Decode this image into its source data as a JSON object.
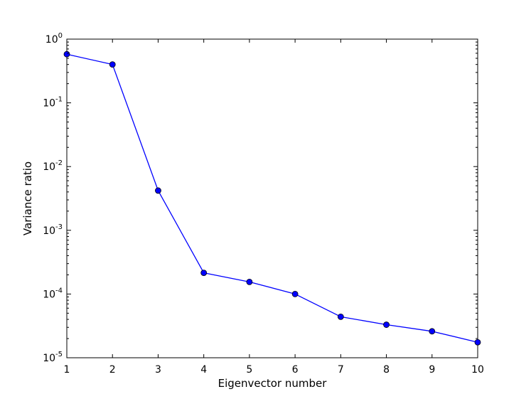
{
  "chart_data": {
    "type": "line",
    "title": "",
    "xlabel": "Eigenvector number",
    "ylabel": "Variance ratio",
    "x": [
      1,
      2,
      3,
      4,
      5,
      6,
      7,
      8,
      9,
      10
    ],
    "xlim": [
      1,
      10
    ],
    "xticks": [
      1,
      2,
      3,
      4,
      5,
      6,
      7,
      8,
      9,
      10
    ],
    "yscale": "log",
    "ylim": [
      1e-05,
      1
    ],
    "yticks": [
      {
        "value": 1,
        "base": "10",
        "exp": "0"
      },
      {
        "value": 0.1,
        "base": "10",
        "exp": "-1"
      },
      {
        "value": 0.01,
        "base": "10",
        "exp": "-2"
      },
      {
        "value": 0.001,
        "base": "10",
        "exp": "-3"
      },
      {
        "value": 0.0001,
        "base": "10",
        "exp": "-4"
      },
      {
        "value": 1e-05,
        "base": "10",
        "exp": "-5"
      }
    ],
    "grid": false,
    "legend": "none",
    "series": [
      {
        "values": [
          0.58,
          0.4,
          0.0042,
          0.000215,
          0.000155,
          0.0001,
          4.4e-05,
          3.3e-05,
          2.6e-05,
          1.75e-05
        ],
        "color": "#0000ff",
        "marker": "circle",
        "marker_color": "#0000ff"
      }
    ]
  }
}
